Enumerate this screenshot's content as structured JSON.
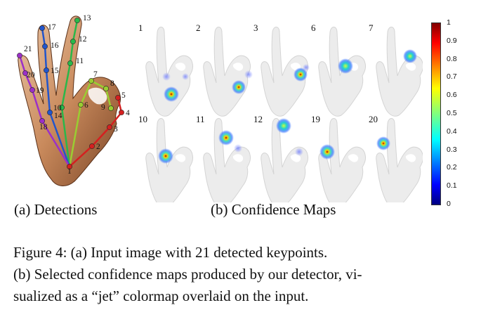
{
  "detections": {
    "keypoints": [
      {
        "id": 1,
        "label": "1"
      },
      {
        "id": 2,
        "label": "2"
      },
      {
        "id": 3,
        "label": "3"
      },
      {
        "id": 4,
        "label": "4"
      },
      {
        "id": 5,
        "label": "5"
      },
      {
        "id": 6,
        "label": "6"
      },
      {
        "id": 7,
        "label": "7"
      },
      {
        "id": 8,
        "label": "8"
      },
      {
        "id": 9,
        "label": "9"
      },
      {
        "id": 10,
        "label": "10"
      },
      {
        "id": 11,
        "label": "11"
      },
      {
        "id": 12,
        "label": "12"
      },
      {
        "id": 13,
        "label": "13"
      },
      {
        "id": 14,
        "label": "14"
      },
      {
        "id": 15,
        "label": "15"
      },
      {
        "id": 16,
        "label": "16"
      },
      {
        "id": 17,
        "label": "17"
      },
      {
        "id": 18,
        "label": "18"
      },
      {
        "id": 19,
        "label": "19"
      },
      {
        "id": 20,
        "label": "20"
      },
      {
        "id": 21,
        "label": "21"
      }
    ],
    "finger_colors": {
      "thumb": "#d42020",
      "index": "#9acd32",
      "middle": "#2ab84a",
      "ring": "#2255cc",
      "pinky": "#9b30c8"
    },
    "caption": "(a) Detections"
  },
  "confidence_maps": {
    "maps": [
      {
        "label": "1"
      },
      {
        "label": "2"
      },
      {
        "label": "3"
      },
      {
        "label": "6"
      },
      {
        "label": "7"
      },
      {
        "label": "10"
      },
      {
        "label": "11"
      },
      {
        "label": "12"
      },
      {
        "label": "19"
      },
      {
        "label": "20"
      }
    ],
    "caption": "(b) Confidence Maps"
  },
  "colorbar": {
    "colormap": "jet",
    "ticks": [
      "1",
      "0.9",
      "0.8",
      "0.7",
      "0.6",
      "0.5",
      "0.4",
      "0.3",
      "0.2",
      "0.1",
      "0"
    ]
  },
  "figure_caption": {
    "lines": [
      "Figure 4:  (a) Input image with 21 detected keypoints.",
      "(b) Selected confidence maps produced by our detector, vi-",
      "sualized as a “jet” colormap overlaid on the input."
    ]
  }
}
